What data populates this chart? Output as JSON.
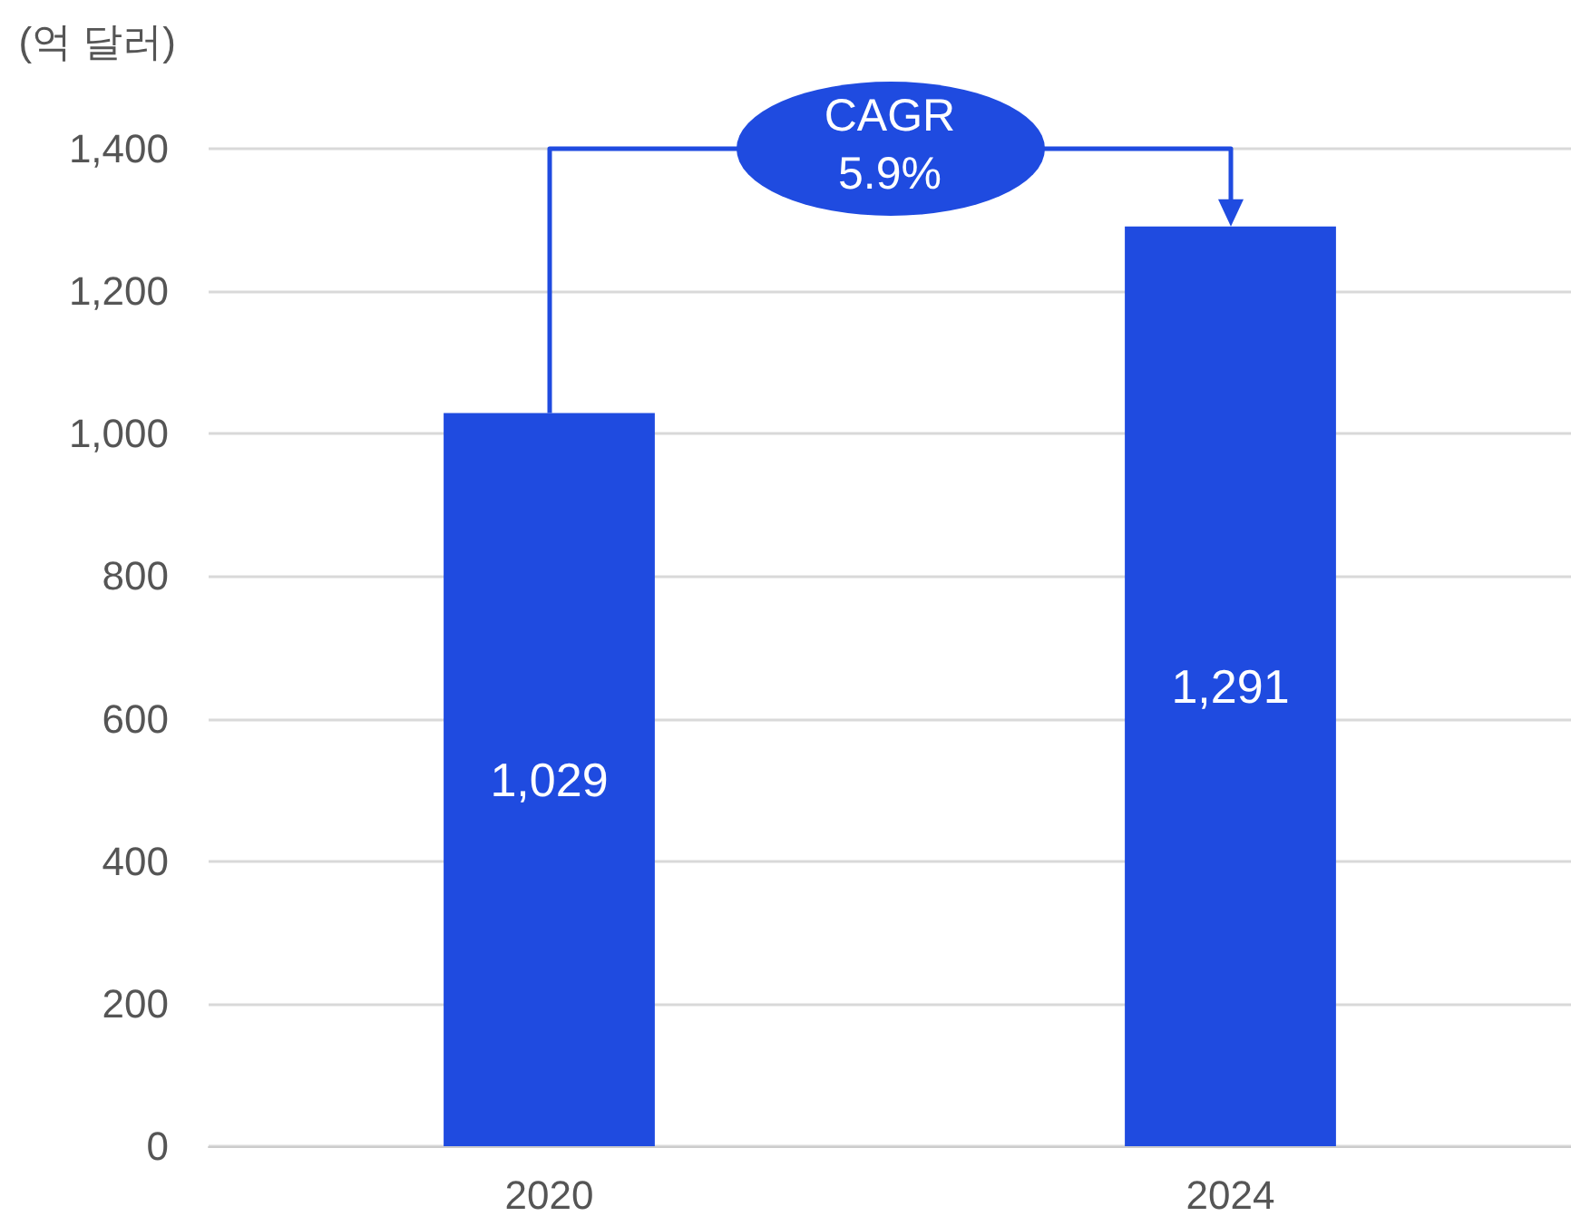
{
  "chart_data": {
    "type": "bar",
    "ylabel": "(억 달러)",
    "categories": [
      "2020",
      "2024"
    ],
    "values": [
      1029,
      1291
    ],
    "value_labels": [
      "1,029",
      "1,291"
    ],
    "color": "#1f4be0",
    "ylim": [
      0,
      1400
    ],
    "yticks": [
      0,
      200,
      400,
      600,
      800,
      {
        "value": 1000,
        "label": "1,000"
      },
      {
        "value": 1200,
        "label": "1,200"
      },
      {
        "value": 1400,
        "label": "1,400"
      }
    ],
    "grid": "y",
    "annotations": [
      "CAGR 5.9%"
    ]
  }
}
